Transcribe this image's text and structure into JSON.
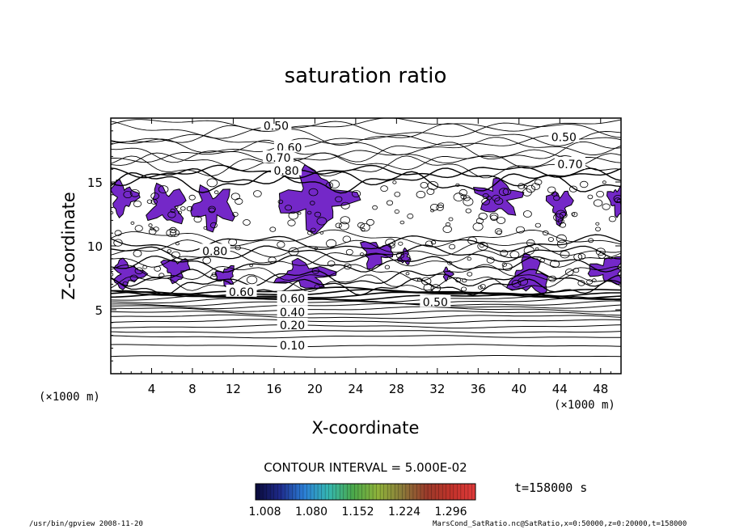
{
  "chart_data": {
    "type": "contour",
    "title": "saturation ratio",
    "xlabel": "X-coordinate",
    "ylabel": "Z-coordinate",
    "x_unit": "(×1000 m)",
    "y_unit": "(×1000 m)",
    "xlim": [
      0,
      50
    ],
    "ylim": [
      0,
      20
    ],
    "x_ticks": [
      4,
      8,
      12,
      16,
      20,
      24,
      28,
      32,
      36,
      40,
      44,
      48
    ],
    "y_ticks": [
      5,
      10,
      15
    ],
    "contour_interval_text": "CONTOUR INTERVAL = 5.000E-02",
    "time_label": "t=158000 s",
    "colorbar": {
      "ticks": [
        "1.008",
        "1.080",
        "1.152",
        "1.224",
        "1.296"
      ],
      "colors": [
        "#0a0a3a",
        "#1e2a8a",
        "#2b7fd6",
        "#35b7b0",
        "#4aa84a",
        "#8fb23a",
        "#8a7a3a",
        "#9a3a2a",
        "#c0322a",
        "#e03a3a"
      ]
    },
    "fill_color": "#7428c8",
    "contour_labels": [
      {
        "x": 16.2,
        "z": 19.4,
        "label": "0.50"
      },
      {
        "x": 17.5,
        "z": 17.7,
        "label": "0.60"
      },
      {
        "x": 16.4,
        "z": 16.9,
        "label": "0.70"
      },
      {
        "x": 17.2,
        "z": 15.9,
        "label": "0.80"
      },
      {
        "x": 44.4,
        "z": 18.5,
        "label": "0.50"
      },
      {
        "x": 45.0,
        "z": 16.4,
        "label": "0.70"
      },
      {
        "x": 10.2,
        "z": 9.6,
        "label": "0.80"
      },
      {
        "x": 12.8,
        "z": 6.4,
        "label": "0.60"
      },
      {
        "x": 31.8,
        "z": 5.6,
        "label": "0.50"
      },
      {
        "x": 17.8,
        "z": 5.9,
        "label": "0.60"
      },
      {
        "x": 17.8,
        "z": 4.8,
        "label": "0.40"
      },
      {
        "x": 17.8,
        "z": 3.8,
        "label": "0.20"
      },
      {
        "x": 17.8,
        "z": 2.2,
        "label": "0.10"
      }
    ],
    "footer_left": "/usr/bin/gpview   2008-11-20",
    "footer_right": "MarsCond_SatRatio.nc@SatRatio,x=0:50000,z=0:20000,t=158000"
  }
}
